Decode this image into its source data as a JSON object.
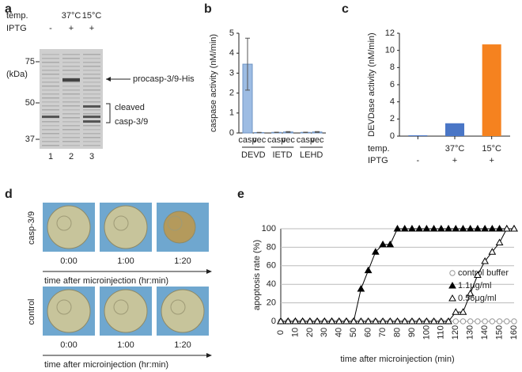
{
  "gel": {
    "panel": "a",
    "temp_label": "temp.",
    "temps": [
      "37°C",
      "15°C"
    ],
    "iptg_label": "IPTG",
    "iptg": [
      "-",
      "+",
      "+"
    ],
    "mw": [
      75,
      50,
      37
    ],
    "mw_unit": "(kDa)",
    "lanes": [
      "1",
      "2",
      "3"
    ],
    "band_labels": [
      "procasp-3/9-His",
      "cleaved",
      "casp-3/9"
    ]
  },
  "micro": {
    "panel": "d",
    "rows": [
      "casp-3/9",
      "control"
    ],
    "times": [
      "0:00",
      "1:00",
      "1:20"
    ],
    "axis_label": "time after microinjection (hr:min)"
  },
  "chart_data": [
    {
      "type": "bar",
      "panel": "b",
      "ylabel": "caspase activity (nM/min)",
      "categories": [
        "DEVD",
        "IETD",
        "LEHD"
      ],
      "series": [
        {
          "name": "casp",
          "color": "#9dbce3",
          "values": [
            3.45,
            0.03,
            0.03
          ],
          "errors": [
            1.3,
            0.01,
            0.01
          ]
        },
        {
          "name": "vec",
          "color": "#9dbce3",
          "values": [
            0.02,
            0.05,
            0.05
          ],
          "errors": [
            0.01,
            0.02,
            0.02
          ]
        }
      ],
      "ylim": [
        0,
        5
      ],
      "yticks": [
        0,
        1,
        2,
        3,
        4,
        5
      ]
    },
    {
      "type": "bar",
      "panel": "c",
      "ylabel": "DEVDase activity (nM/min)",
      "values": [
        0.1,
        1.5,
        10.7
      ],
      "colors": [
        "#4a76c6",
        "#4a76c6",
        "#f5821f"
      ],
      "rows": [
        {
          "label": "temp.",
          "values": [
            null,
            "37°C",
            "15°C"
          ]
        },
        {
          "label": "IPTG",
          "values": [
            "-",
            "+",
            "+"
          ]
        }
      ],
      "ylim": [
        0,
        12
      ],
      "yticks": [
        0,
        2,
        4,
        6,
        8,
        10,
        12
      ]
    },
    {
      "type": "line",
      "panel": "e",
      "ylabel": "apoptosis rate (%)",
      "xlabel": "time after microinjection (min)",
      "x": [
        0,
        5,
        10,
        15,
        20,
        25,
        30,
        35,
        40,
        45,
        50,
        55,
        60,
        65,
        70,
        75,
        80,
        85,
        90,
        95,
        100,
        105,
        110,
        115,
        120,
        125,
        130,
        135,
        140,
        145,
        150,
        155,
        160
      ],
      "series": [
        {
          "name": "control buffer",
          "color": "#999999",
          "marker": "circle-open",
          "values": [
            0,
            0,
            0,
            0,
            0,
            0,
            0,
            0,
            0,
            0,
            0,
            0,
            0,
            0,
            0,
            0,
            0,
            0,
            0,
            0,
            0,
            0,
            0,
            0,
            0,
            0,
            0,
            0,
            0,
            0,
            0,
            0,
            0
          ]
        },
        {
          "name": "1.1μg/ml",
          "color": "#000000",
          "marker": "triangle-filled",
          "values": [
            0,
            0,
            0,
            0,
            0,
            0,
            0,
            0,
            0,
            0,
            0,
            35,
            55,
            75,
            83,
            83,
            100,
            100,
            100,
            100,
            100,
            100,
            100,
            100,
            100,
            100,
            100,
            100,
            100,
            100,
            100,
            100,
            100
          ]
        },
        {
          "name": "0.56μg/ml",
          "color": "#000000",
          "marker": "triangle-open",
          "values": [
            0,
            0,
            0,
            0,
            0,
            0,
            0,
            0,
            0,
            0,
            0,
            0,
            0,
            0,
            0,
            0,
            0,
            0,
            0,
            0,
            0,
            0,
            0,
            0,
            10,
            10,
            30,
            50,
            65,
            75,
            85,
            100,
            100
          ]
        }
      ],
      "xlim": [
        0,
        160
      ],
      "xticks": [
        0,
        10,
        20,
        30,
        40,
        50,
        60,
        70,
        80,
        90,
        100,
        110,
        120,
        130,
        140,
        150,
        160
      ],
      "ylim": [
        0,
        100
      ],
      "yticks": [
        0,
        20,
        40,
        60,
        80,
        100
      ],
      "grid": true
    }
  ]
}
